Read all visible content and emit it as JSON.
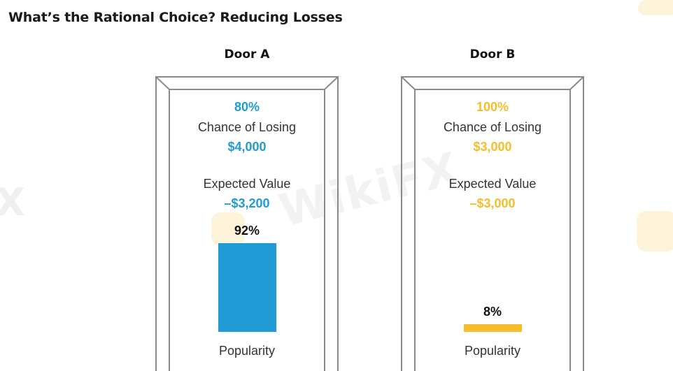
{
  "title": "What’s the Rational Choice? Reducing Losses",
  "watermark": "WikiFX",
  "colors": {
    "door_a": "#219bd6",
    "door_b": "#f5bd2a",
    "frame": "#8a8a8a",
    "title": "#1a1a1a"
  },
  "doors": [
    {
      "name": "Door A",
      "chance": "80%",
      "chance_label": "Chance of Losing",
      "amount": "$4,000",
      "ev_label": "Expected Value",
      "ev": "–$3,200",
      "popularity": "92%",
      "popularity_label": "Popularity"
    },
    {
      "name": "Door B",
      "chance": "100%",
      "chance_label": "Chance of Losing",
      "amount": "$3,000",
      "ev_label": "Expected Value",
      "ev": "–$3,000",
      "popularity": "8%",
      "popularity_label": "Popularity"
    }
  ],
  "chart_data": {
    "type": "bar",
    "title": "What’s the Rational Choice? Reducing Losses",
    "categories": [
      "Door A",
      "Door B"
    ],
    "series": [
      {
        "values": [
          92,
          8
        ]
      }
    ],
    "ylim": [
      0,
      100
    ],
    "xlabel": "",
    "ylabel": "",
    "details": [
      {
        "category": "Door A",
        "chance_of_losing": 80,
        "loss_amount": 4000,
        "expected_value": -3200
      },
      {
        "category": "Door B",
        "chance_of_losing": 100,
        "loss_amount": 3000,
        "expected_value": -3000
      }
    ]
  }
}
